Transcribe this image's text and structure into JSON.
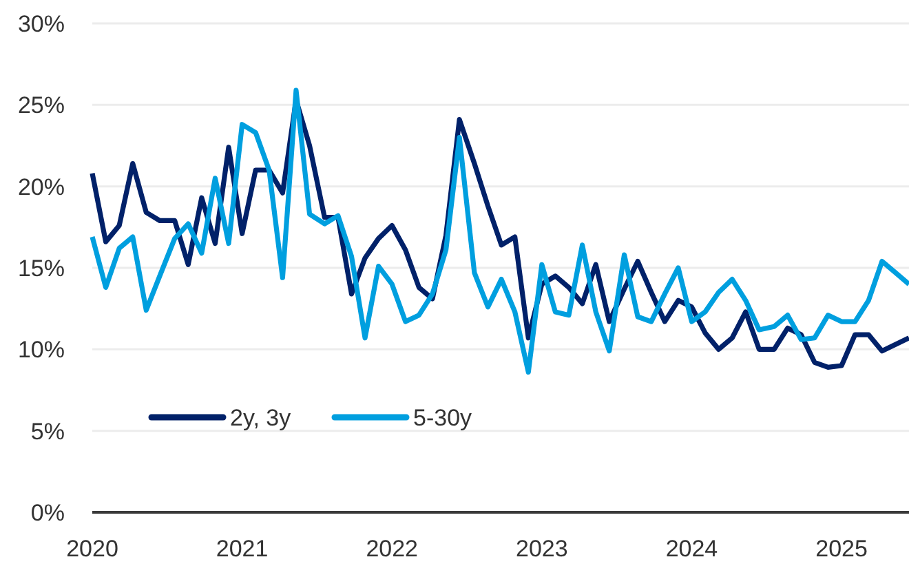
{
  "chart_data": {
    "type": "line",
    "x": [
      2020,
      2020.09,
      2020.18,
      2020.27,
      2020.36,
      2020.45,
      2020.55,
      2020.64,
      2020.73,
      2020.82,
      2020.91,
      2021,
      2021.09,
      2021.18,
      2021.27,
      2021.36,
      2021.45,
      2021.55,
      2021.64,
      2021.73,
      2021.82,
      2021.91,
      2022,
      2022.09,
      2022.18,
      2022.27,
      2022.36,
      2022.45,
      2022.55,
      2022.64,
      2022.73,
      2022.82,
      2022.91,
      2023,
      2023.09,
      2023.18,
      2023.27,
      2023.36,
      2023.45,
      2023.55,
      2023.64,
      2023.73,
      2023.82,
      2023.91,
      2024,
      2024.09,
      2024.18,
      2024.27,
      2024.36,
      2024.45,
      2024.55,
      2024.64,
      2024.73,
      2024.82,
      2024.91,
      2025,
      2025.09,
      2025.18,
      2025.27,
      2025.36,
      2025.45
    ],
    "series": [
      {
        "name": "2y, 3y",
        "color": "#012169",
        "values": [
          20.8,
          16.6,
          17.6,
          21.4,
          18.4,
          17.9,
          17.9,
          15.2,
          19.3,
          16.5,
          22.4,
          17.1,
          21.0,
          21.0,
          19.6,
          25.3,
          22.5,
          18.1,
          18.1,
          13.4,
          15.6,
          16.8,
          17.6,
          16.1,
          13.8,
          13.1,
          17.0,
          24.1,
          21.4,
          18.8,
          16.4,
          16.9,
          10.7,
          14.0,
          14.5,
          13.8,
          12.8,
          15.2,
          11.7,
          13.7,
          15.4,
          13.5,
          11.7,
          13.0,
          12.6,
          11.0,
          10.0,
          10.7,
          12.3,
          10.0,
          10.0,
          11.3,
          10.9,
          9.2,
          8.9,
          9.0,
          10.9,
          10.9,
          9.9,
          10.3,
          10.7
        ]
      },
      {
        "name": "5-30y",
        "color": "#009fdf",
        "values": [
          16.9,
          13.8,
          16.2,
          16.9,
          12.4,
          14.5,
          16.8,
          17.7,
          15.9,
          20.5,
          16.5,
          23.8,
          23.3,
          21.0,
          14.4,
          25.9,
          18.3,
          17.7,
          18.2,
          15.7,
          10.7,
          15.1,
          14.0,
          11.7,
          12.1,
          13.4,
          16.1,
          23.0,
          14.7,
          12.6,
          14.3,
          12.3,
          8.6,
          15.2,
          12.3,
          12.1,
          16.4,
          12.3,
          9.9,
          15.8,
          12.0,
          11.7,
          13.4,
          15.0,
          11.7,
          12.3,
          13.5,
          14.3,
          13.0,
          11.2,
          11.4,
          12.1,
          10.6,
          10.7,
          12.1,
          11.7,
          11.7,
          13.0,
          15.4,
          14.7,
          14.0
        ]
      }
    ],
    "xlim": [
      2020,
      2025.45
    ],
    "xticks": [
      2020,
      2021,
      2022,
      2023,
      2024,
      2025
    ],
    "ylim": [
      0,
      30
    ],
    "yticks": [
      {
        "value": 0,
        "label": "0%"
      },
      {
        "value": 5,
        "label": "5%"
      },
      {
        "value": 10,
        "label": "10%"
      },
      {
        "value": 15,
        "label": "15%"
      },
      {
        "value": 20,
        "label": "20%"
      },
      {
        "value": 25,
        "label": "25%"
      },
      {
        "value": 30,
        "label": "30%"
      }
    ],
    "grid": "y",
    "legend": "bottom left"
  }
}
